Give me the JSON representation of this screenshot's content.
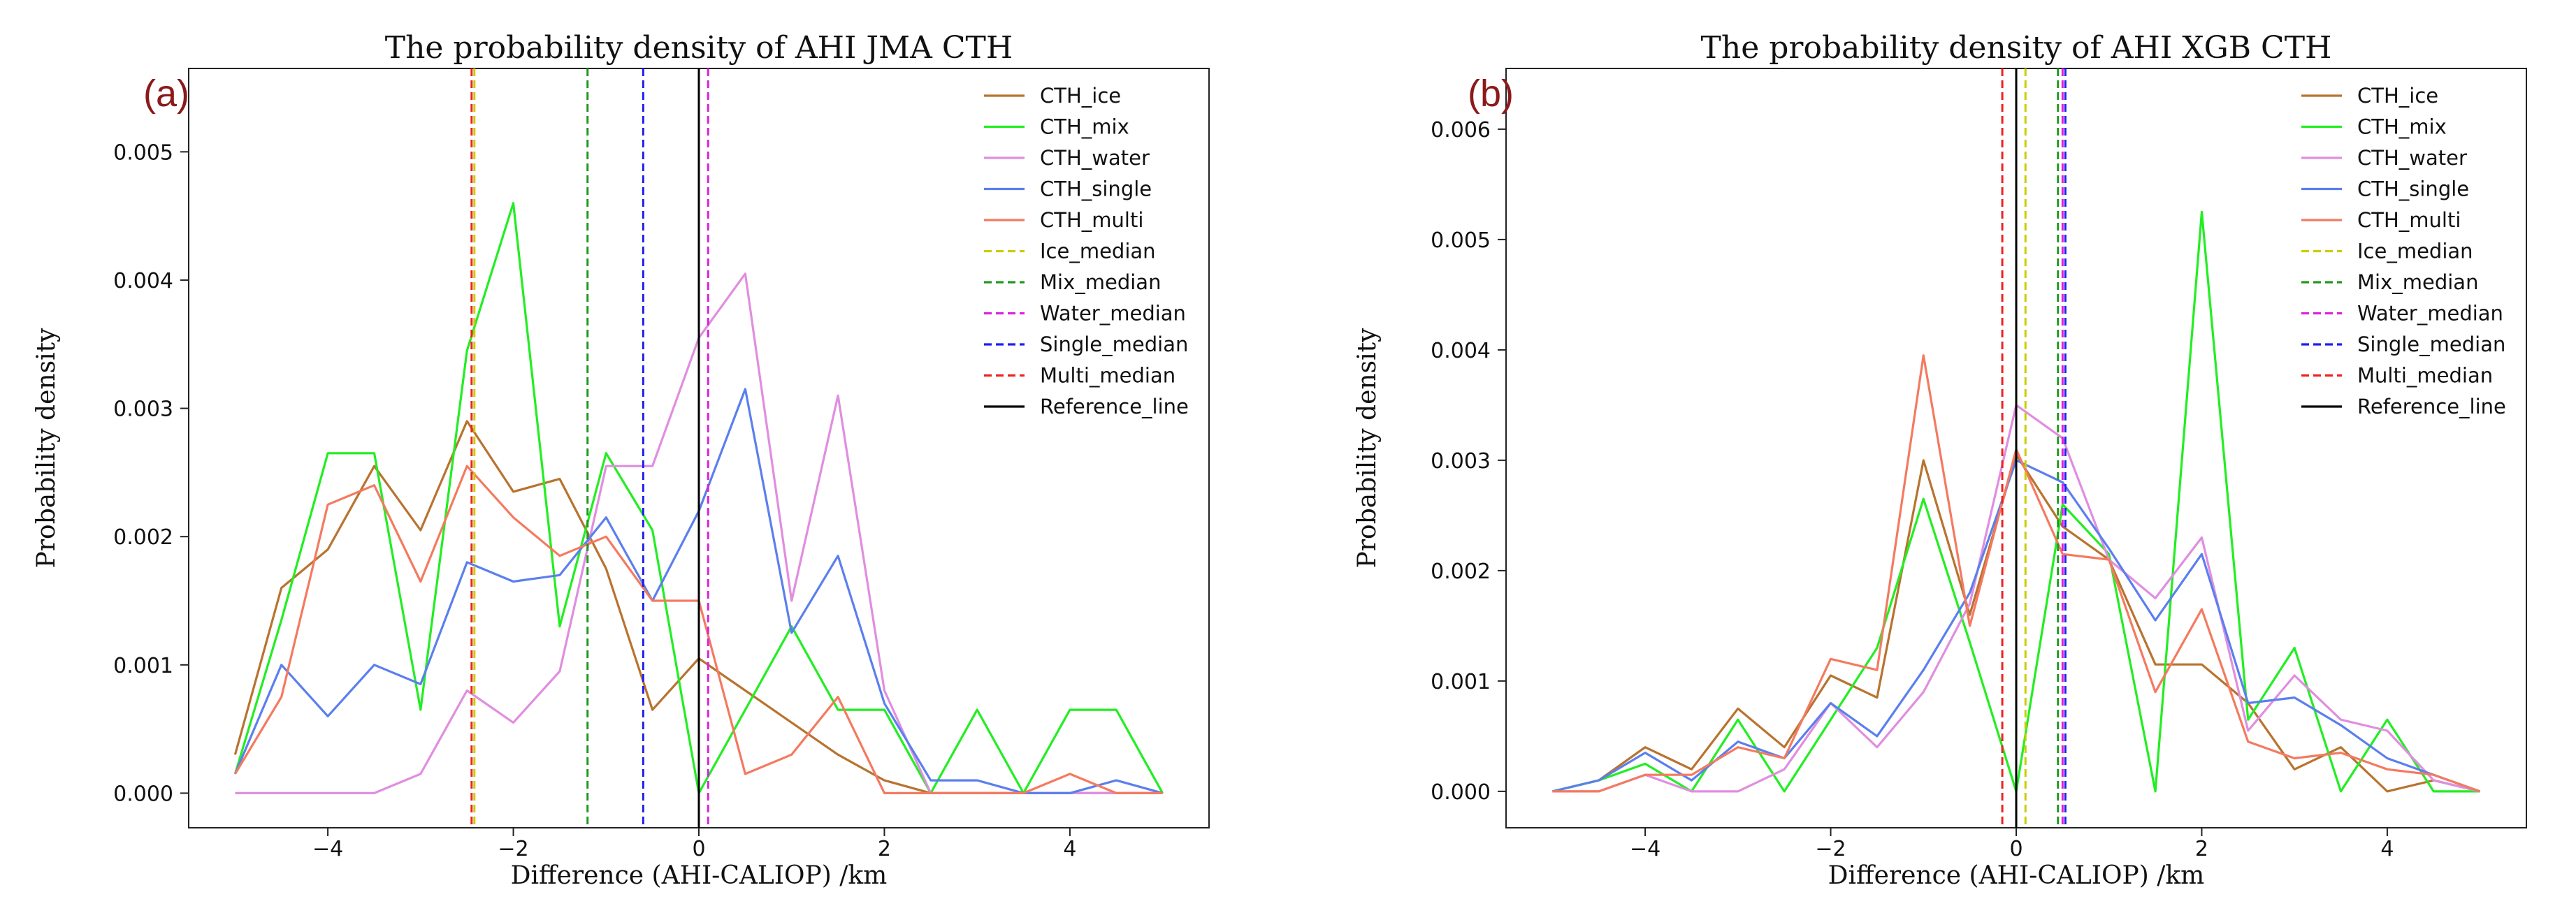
{
  "colors": {
    "CTH_ice": "#b8732f",
    "CTH_mix": "#22ee22",
    "CTH_water": "#e08ee0",
    "CTH_single": "#5b7fee",
    "CTH_multi": "#f47a60",
    "Ice_median": "#cccc00",
    "Mix_median": "#1f9a1f",
    "Water_median": "#dd22dd",
    "Single_median": "#1f1fee",
    "Multi_median": "#ee2222",
    "Reference_line": "#000000",
    "panel_label": "#8b1a1a"
  },
  "chart_data": [
    {
      "type": "line",
      "panel_label": "(a)",
      "title": "The probability density of AHI JMA CTH",
      "xlabel": "Difference (AHI-CALIOP) /km",
      "ylabel": "Probability density",
      "xlim": [
        -5.5,
        5.5
      ],
      "ylim": [
        -0.00027,
        0.00565
      ],
      "xticks": [
        -4,
        -2,
        0,
        2,
        4
      ],
      "xtick_labels": [
        "−4",
        "−2",
        "0",
        "2",
        "4"
      ],
      "yticks": [
        0,
        0.001,
        0.002,
        0.003,
        0.004,
        0.005
      ],
      "ytick_labels": [
        "0.000",
        "0.001",
        "0.002",
        "0.003",
        "0.004",
        "0.005"
      ],
      "legend_position": "top-right",
      "x": [
        -5,
        -4.5,
        -4,
        -3.5,
        -3,
        -2.5,
        -2,
        -1.5,
        -1,
        -0.5,
        0,
        0.5,
        1,
        1.5,
        2,
        2.5,
        3,
        3.5,
        4,
        4.5,
        5
      ],
      "series": [
        {
          "name": "CTH_ice",
          "color_key": "CTH_ice",
          "values": [
            0.0003,
            0.0016,
            0.0019,
            0.00255,
            0.00205,
            0.0029,
            0.00235,
            0.00245,
            0.00175,
            0.00065,
            0.00105,
            0.0008,
            0.00055,
            0.0003,
            0.0001,
            0.0,
            0.0,
            0.0,
            0.0,
            0.0,
            0.0
          ]
        },
        {
          "name": "CTH_mix",
          "color_key": "CTH_mix",
          "values": [
            0.00015,
            0.00135,
            0.00265,
            0.00265,
            0.00065,
            0.00345,
            0.0046,
            0.0013,
            0.00265,
            0.00205,
            0.0,
            0.00065,
            0.0013,
            0.00065,
            0.00065,
            0.0,
            0.00065,
            0.0,
            0.00065,
            0.00065,
            0.0
          ]
        },
        {
          "name": "CTH_water",
          "color_key": "CTH_water",
          "values": [
            0.0,
            0.0,
            0.0,
            0.0,
            0.00015,
            0.0008,
            0.00055,
            0.00095,
            0.00255,
            0.00255,
            0.00355,
            0.00405,
            0.0015,
            0.0031,
            0.0008,
            0.0,
            0.0,
            0.0,
            0.0,
            0.0,
            0.0
          ]
        },
        {
          "name": "CTH_single",
          "color_key": "CTH_single",
          "values": [
            0.00015,
            0.001,
            0.0006,
            0.001,
            0.00085,
            0.0018,
            0.00165,
            0.0017,
            0.00215,
            0.0015,
            0.0022,
            0.00315,
            0.00125,
            0.00185,
            0.0007,
            0.0001,
            0.0001,
            0.0,
            0.0,
            0.0001,
            0.0
          ]
        },
        {
          "name": "CTH_multi",
          "color_key": "CTH_multi",
          "values": [
            0.00015,
            0.00075,
            0.00225,
            0.0024,
            0.00165,
            0.00255,
            0.00215,
            0.00185,
            0.002,
            0.0015,
            0.0015,
            0.00015,
            0.0003,
            0.00075,
            0.0,
            0.0,
            0.0,
            0.0,
            0.00015,
            0.0,
            0.0
          ]
        }
      ],
      "vlines": [
        {
          "name": "Ice_median",
          "color_key": "Ice_median",
          "x": -2.42,
          "style": "dashed"
        },
        {
          "name": "Mix_median",
          "color_key": "Mix_median",
          "x": -1.2,
          "style": "dashed"
        },
        {
          "name": "Water_median",
          "color_key": "Water_median",
          "x": 0.1,
          "style": "dashed"
        },
        {
          "name": "Single_median",
          "color_key": "Single_median",
          "x": -0.6,
          "style": "dashed"
        },
        {
          "name": "Multi_median",
          "color_key": "Multi_median",
          "x": -2.45,
          "style": "dashed"
        },
        {
          "name": "Reference_line",
          "color_key": "Reference_line",
          "x": 0.0,
          "style": "solid"
        }
      ]
    },
    {
      "type": "line",
      "panel_label": "(b)",
      "title": "The probability density of AHI XGB CTH",
      "xlabel": "Difference (AHI-CALIOP) /km",
      "ylabel": "Probability density",
      "xlim": [
        -5.5,
        5.5
      ],
      "ylim": [
        -0.00033,
        0.00655
      ],
      "xticks": [
        -4,
        -2,
        0,
        2,
        4
      ],
      "xtick_labels": [
        "−4",
        "−2",
        "0",
        "2",
        "4"
      ],
      "yticks": [
        0,
        0.001,
        0.002,
        0.003,
        0.004,
        0.005,
        0.006
      ],
      "ytick_labels": [
        "0.000",
        "0.001",
        "0.002",
        "0.003",
        "0.004",
        "0.005",
        "0.006"
      ],
      "legend_position": "top-right",
      "x": [
        -5,
        -4.5,
        -4,
        -3.5,
        -3,
        -2.5,
        -2,
        -1.5,
        -1,
        -0.5,
        0,
        0.5,
        1,
        1.5,
        2,
        2.5,
        3,
        3.5,
        4,
        4.5,
        5
      ],
      "series": [
        {
          "name": "CTH_ice",
          "color_key": "CTH_ice",
          "values": [
            0.0,
            0.0001,
            0.0004,
            0.0002,
            0.00075,
            0.0004,
            0.00105,
            0.00085,
            0.003,
            0.0016,
            0.00305,
            0.0024,
            0.0021,
            0.00115,
            0.00115,
            0.0008,
            0.0002,
            0.0004,
            0.0,
            0.0001,
            0.0
          ]
        },
        {
          "name": "CTH_mix",
          "color_key": "CTH_mix",
          "values": [
            0.0,
            0.0001,
            0.00025,
            0.0,
            0.00065,
            0.0,
            0.00065,
            0.0013,
            0.00265,
            0.00135,
            0.0,
            0.0026,
            0.00215,
            0.0,
            0.00525,
            0.00065,
            0.0013,
            0.0,
            0.00065,
            0.0,
            0.0
          ]
        },
        {
          "name": "CTH_water",
          "color_key": "CTH_water",
          "values": [
            0.0,
            0.0,
            0.00015,
            0.0,
            0.0,
            0.0002,
            0.0008,
            0.0004,
            0.0009,
            0.0017,
            0.0035,
            0.0032,
            0.0021,
            0.00175,
            0.0023,
            0.00055,
            0.00105,
            0.00065,
            0.00055,
            0.0001,
            0.0
          ]
        },
        {
          "name": "CTH_single",
          "color_key": "CTH_single",
          "values": [
            0.0,
            0.0001,
            0.00035,
            0.0001,
            0.00045,
            0.0003,
            0.0008,
            0.0005,
            0.0011,
            0.0018,
            0.003,
            0.0028,
            0.0022,
            0.00155,
            0.00215,
            0.0008,
            0.00085,
            0.0006,
            0.0003,
            0.00015,
            0.0
          ]
        },
        {
          "name": "CTH_multi",
          "color_key": "CTH_multi",
          "values": [
            0.0,
            0.0,
            0.00015,
            0.00015,
            0.0004,
            0.0003,
            0.0012,
            0.0011,
            0.00395,
            0.0015,
            0.0031,
            0.00215,
            0.0021,
            0.0009,
            0.00165,
            0.00045,
            0.0003,
            0.00035,
            0.0002,
            0.00015,
            0.0
          ]
        }
      ],
      "vlines": [
        {
          "name": "Ice_median",
          "color_key": "Ice_median",
          "x": 0.1,
          "style": "dashed"
        },
        {
          "name": "Mix_median",
          "color_key": "Mix_median",
          "x": 0.45,
          "style": "dashed"
        },
        {
          "name": "Water_median",
          "color_key": "Water_median",
          "x": 0.5,
          "style": "dashed"
        },
        {
          "name": "Single_median",
          "color_key": "Single_median",
          "x": 0.53,
          "style": "dashed"
        },
        {
          "name": "Multi_median",
          "color_key": "Multi_median",
          "x": -0.15,
          "style": "dashed"
        },
        {
          "name": "Reference_line",
          "color_key": "Reference_line",
          "x": 0.0,
          "style": "solid"
        }
      ]
    }
  ]
}
